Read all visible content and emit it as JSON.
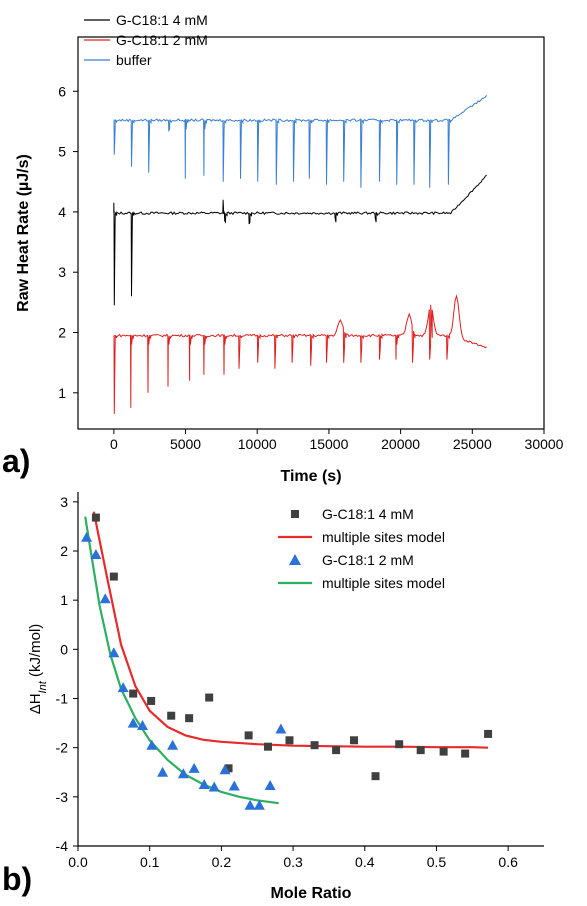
{
  "panel_labels": {
    "a": "a)",
    "b": "b)"
  },
  "chart_data": [
    {
      "id": "a",
      "type": "line",
      "xlabel": "Time (s)",
      "ylabel": "Raw Heat Rate (µJ/s)",
      "xlim": [
        -2500,
        30000
      ],
      "ylim": [
        0.4,
        6.9
      ],
      "xticks": [
        0,
        5000,
        10000,
        15000,
        20000,
        25000,
        30000
      ],
      "yticks": [
        1,
        2,
        3,
        4,
        5,
        6
      ],
      "grid": false,
      "legend_position": "top-left",
      "series": [
        {
          "name": "G-C18:1 4 mM",
          "color": "#000000",
          "baseline": 3.98,
          "end_y": 4.6,
          "spikes": [
            {
              "x": 0,
              "y": 2.45,
              "up": 4.15
            },
            {
              "x": 1200,
              "y": 2.6
            },
            {
              "x": 7600,
              "y": 4.2,
              "up": true
            },
            {
              "x": 7700,
              "y": 3.85
            },
            {
              "x": 9400,
              "y": 3.8
            },
            {
              "x": 15400,
              "y": 3.9
            },
            {
              "x": 18200,
              "y": 3.9
            }
          ]
        },
        {
          "name": "G-C18:1 2 mM",
          "color": "#e02020",
          "baseline": 1.95,
          "end_y": 1.75,
          "spikes": [
            {
              "x": 0,
              "y": 0.65
            },
            {
              "x": 1150,
              "y": 0.75
            },
            {
              "x": 2350,
              "y": 1.0
            },
            {
              "x": 3750,
              "y": 1.1
            },
            {
              "x": 5250,
              "y": 1.2
            },
            {
              "x": 6250,
              "y": 1.3
            },
            {
              "x": 7650,
              "y": 1.3
            },
            {
              "x": 8700,
              "y": 1.4
            },
            {
              "x": 10000,
              "y": 1.5
            },
            {
              "x": 11200,
              "y": 1.4
            },
            {
              "x": 12400,
              "y": 1.5
            },
            {
              "x": 13700,
              "y": 1.45
            },
            {
              "x": 14800,
              "y": 1.5
            },
            {
              "x": 16000,
              "y": 1.5
            },
            {
              "x": 17200,
              "y": 1.5
            },
            {
              "x": 18500,
              "y": 1.55
            },
            {
              "x": 19650,
              "y": 1.55
            },
            {
              "x": 20800,
              "y": 1.5
            },
            {
              "x": 22000,
              "y": 1.55
            },
            {
              "x": 23200,
              "y": 1.55
            }
          ],
          "bumps": [
            {
              "x": 15800,
              "y": 2.2
            },
            {
              "x": 20600,
              "y": 2.3
            },
            {
              "x": 22100,
              "y": 2.45
            },
            {
              "x": 23900,
              "y": 2.65
            }
          ]
        },
        {
          "name": "buffer",
          "color": "#3a7fd5",
          "baseline": 5.52,
          "end_y": 5.92,
          "spikes": [
            {
              "x": 0,
              "y": 4.95
            },
            {
              "x": 1200,
              "y": 4.75
            },
            {
              "x": 2400,
              "y": 4.65
            },
            {
              "x": 3800,
              "y": 5.35
            },
            {
              "x": 4950,
              "y": 4.55
            },
            {
              "x": 6250,
              "y": 4.6
            },
            {
              "x": 7600,
              "y": 4.5
            },
            {
              "x": 8800,
              "y": 4.55
            },
            {
              "x": 10000,
              "y": 4.5
            },
            {
              "x": 11300,
              "y": 4.45
            },
            {
              "x": 12500,
              "y": 4.5
            },
            {
              "x": 13600,
              "y": 4.55
            },
            {
              "x": 14800,
              "y": 4.45
            },
            {
              "x": 16000,
              "y": 4.5
            },
            {
              "x": 17200,
              "y": 4.4
            },
            {
              "x": 18500,
              "y": 4.5
            },
            {
              "x": 19700,
              "y": 4.45
            },
            {
              "x": 20900,
              "y": 4.45
            },
            {
              "x": 22000,
              "y": 4.4
            },
            {
              "x": 23300,
              "y": 4.45
            }
          ]
        }
      ]
    },
    {
      "id": "b",
      "type": "scatter",
      "xlabel": "Mole Ratio",
      "ylabel": "ΔH",
      "ylabel_sub": "Int",
      "ylabel_unit": " (kJ/mol)",
      "xlim": [
        0.0,
        0.65
      ],
      "ylim": [
        -4,
        3.2
      ],
      "xticks": [
        0.0,
        0.1,
        0.2,
        0.3,
        0.4,
        0.5,
        0.6
      ],
      "xtick_labels": [
        "0.0",
        "0.1",
        "0.2",
        "0.3",
        "0.4",
        "0.5",
        "0.6"
      ],
      "yticks": [
        -4,
        -3,
        -2,
        -1,
        0,
        1,
        2,
        3
      ],
      "grid": false,
      "legend_position": "top-right",
      "series": [
        {
          "name": "G-C18:1 4 mM",
          "marker": "square",
          "color": "#404040",
          "x": [
            0.025,
            0.05,
            0.077,
            0.102,
            0.13,
            0.155,
            0.183,
            0.21,
            0.238,
            0.265,
            0.295,
            0.33,
            0.36,
            0.385,
            0.415,
            0.448,
            0.478,
            0.51,
            0.54,
            0.572
          ],
          "y": [
            2.68,
            1.48,
            -0.9,
            -1.05,
            -1.35,
            -1.4,
            -0.98,
            -2.42,
            -1.75,
            -1.98,
            -1.85,
            -1.95,
            -2.05,
            -1.85,
            -2.58,
            -1.93,
            -2.05,
            -2.08,
            -2.12,
            -1.72
          ]
        },
        {
          "name": "multiple sites model",
          "type": "line",
          "color": "#e82a2a",
          "x": [
            0.022,
            0.04,
            0.06,
            0.08,
            0.1,
            0.125,
            0.15,
            0.175,
            0.2,
            0.25,
            0.3,
            0.35,
            0.4,
            0.45,
            0.5,
            0.55,
            0.572
          ],
          "y": [
            2.8,
            1.5,
            0.1,
            -0.75,
            -1.25,
            -1.58,
            -1.75,
            -1.84,
            -1.88,
            -1.93,
            -1.96,
            -1.97,
            -1.98,
            -1.98,
            -1.99,
            -1.99,
            -2.0
          ]
        },
        {
          "name": "G-C18:1 2 mM",
          "marker": "triangle",
          "color": "#2a72d8",
          "x": [
            0.012,
            0.025,
            0.038,
            0.05,
            0.063,
            0.077,
            0.09,
            0.103,
            0.118,
            0.132,
            0.147,
            0.162,
            0.176,
            0.19,
            0.205,
            0.218,
            0.24,
            0.253,
            0.268,
            0.283
          ],
          "y": [
            2.28,
            1.93,
            1.03,
            -0.07,
            -0.78,
            -1.5,
            -1.55,
            -1.95,
            -2.5,
            -1.95,
            -2.53,
            -2.42,
            -2.75,
            -2.8,
            -2.45,
            -2.78,
            -3.17,
            -3.17,
            -2.77,
            -1.62
          ]
        },
        {
          "name": "multiple sites model",
          "type": "line",
          "color": "#2bb060",
          "x": [
            0.01,
            0.02,
            0.03,
            0.045,
            0.06,
            0.08,
            0.1,
            0.125,
            0.15,
            0.175,
            0.2,
            0.225,
            0.25,
            0.28
          ],
          "y": [
            2.7,
            1.8,
            0.9,
            -0.1,
            -0.8,
            -1.4,
            -1.85,
            -2.25,
            -2.55,
            -2.75,
            -2.9,
            -3.0,
            -3.07,
            -3.13
          ]
        }
      ]
    }
  ]
}
